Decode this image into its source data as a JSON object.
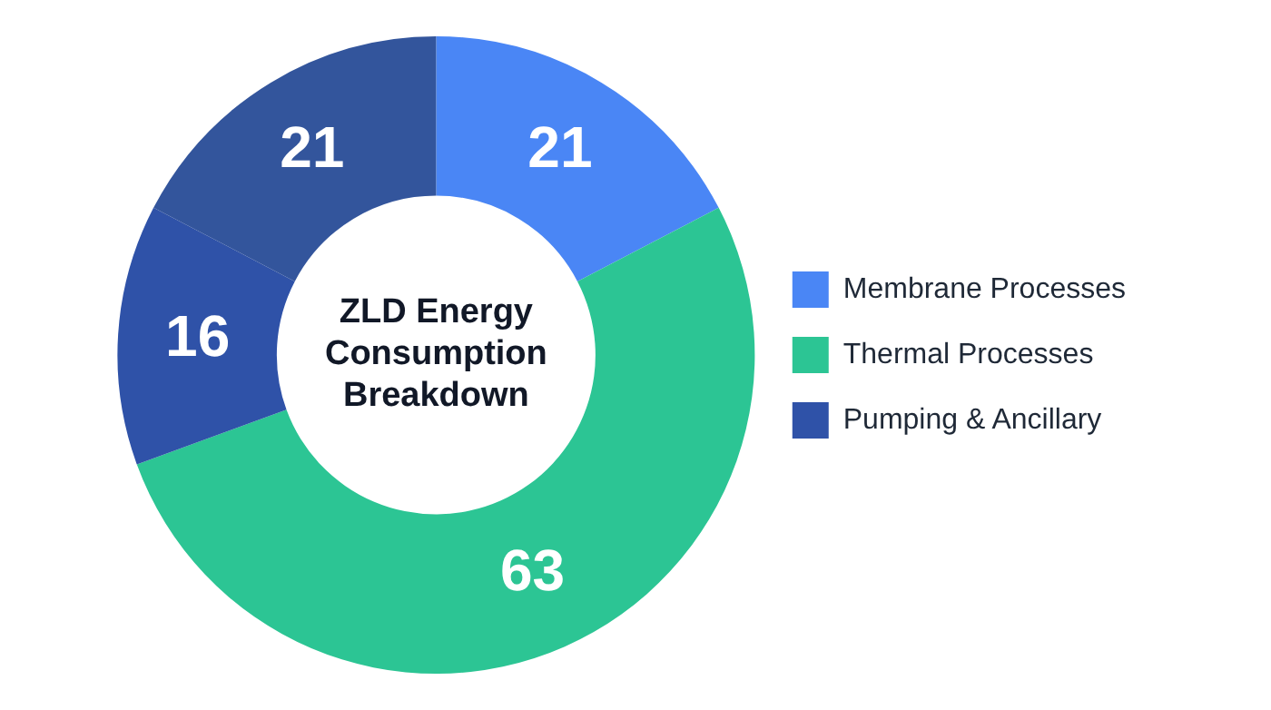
{
  "chart_data": {
    "type": "donut",
    "title": "ZLD Energy Consumption Breakdown",
    "categories": [
      "Membrane Processes",
      "Thermal Processes",
      "Pumping & Ancillary",
      null
    ],
    "values": [
      21,
      63,
      16,
      21
    ],
    "colors": [
      "#4a86f5",
      "#2cc594",
      "#2f52a8",
      "#33559c"
    ],
    "data_labels": true,
    "legend": "right"
  }
}
